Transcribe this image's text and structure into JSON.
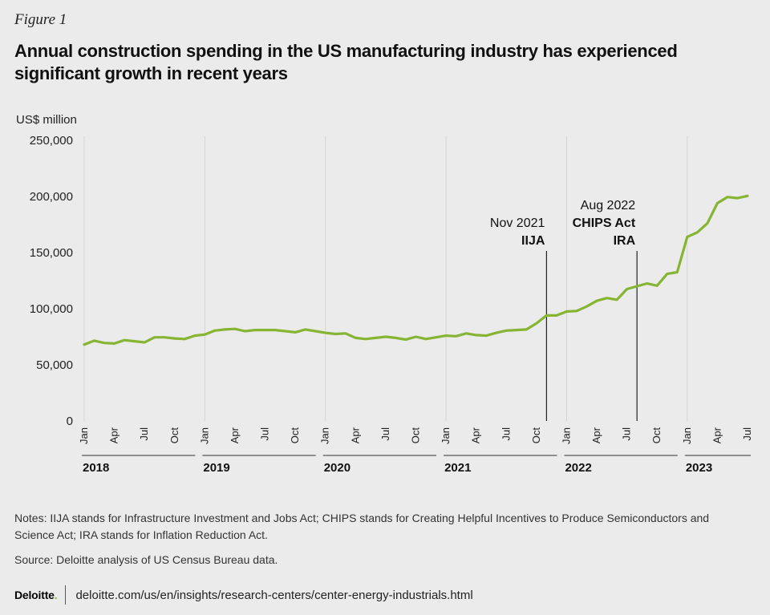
{
  "figure_label": "Figure 1",
  "title": "Annual construction spending in the US manufacturing industry has experienced significant growth in recent years",
  "notes": "Notes: IIJA stands for Infrastructure Investment and Jobs Act; CHIPS stands for Creating Helpful Incentives to Produce Semiconductors and Science Act; IRA stands for Inflation Reduction Act.",
  "source": "Source: Deloitte analysis of US Census Bureau data.",
  "footer": {
    "brand": "Deloitte",
    "brand_dot": ".",
    "url": "deloitte.com/us/en/insights/research-centers/center-energy-industrials.html"
  },
  "colors": {
    "line": "#86b534",
    "background": "#ebebeb",
    "gridline": "#d4d4d4",
    "text": "#1a1a1a"
  },
  "chart_data": {
    "type": "line",
    "ylabel": "US$ million",
    "ylim": [
      0,
      250000
    ],
    "yticks": [
      0,
      50000,
      100000,
      150000,
      200000,
      250000
    ],
    "ytick_labels": [
      "0",
      "50,000",
      "100,000",
      "150,000",
      "200,000",
      "250,000"
    ],
    "month_tick_labels": [
      "Jan",
      "Apr",
      "Jul",
      "Oct"
    ],
    "years": [
      "2018",
      "2019",
      "2020",
      "2021",
      "2022",
      "2023"
    ],
    "x_start": "2018-01",
    "x_end": "2023-07",
    "grid": "vertical lines at each January",
    "series": [
      {
        "dates": [
          "2018-01",
          "2018-02",
          "2018-03",
          "2018-04",
          "2018-05",
          "2018-06",
          "2018-07",
          "2018-08",
          "2018-09",
          "2018-10",
          "2018-11",
          "2018-12",
          "2019-01",
          "2019-02",
          "2019-03",
          "2019-04",
          "2019-05",
          "2019-06",
          "2019-07",
          "2019-08",
          "2019-09",
          "2019-10",
          "2019-11",
          "2019-12",
          "2020-01",
          "2020-02",
          "2020-03",
          "2020-04",
          "2020-05",
          "2020-06",
          "2020-07",
          "2020-08",
          "2020-09",
          "2020-10",
          "2020-11",
          "2020-12",
          "2021-01",
          "2021-02",
          "2021-03",
          "2021-04",
          "2021-05",
          "2021-06",
          "2021-07",
          "2021-08",
          "2021-09",
          "2021-10",
          "2021-11",
          "2021-12",
          "2022-01",
          "2022-02",
          "2022-03",
          "2022-04",
          "2022-05",
          "2022-06",
          "2022-07",
          "2022-08",
          "2022-09",
          "2022-10",
          "2022-11",
          "2022-12",
          "2023-01",
          "2023-02",
          "2023-03",
          "2023-04",
          "2023-05",
          "2023-06",
          "2023-07"
        ],
        "values": [
          68000,
          71500,
          69500,
          69000,
          72000,
          71000,
          70000,
          74500,
          74500,
          73500,
          73000,
          76000,
          77000,
          80500,
          81500,
          82000,
          80000,
          81000,
          81000,
          81000,
          80000,
          79000,
          81500,
          80000,
          78500,
          77500,
          78000,
          74000,
          73000,
          74000,
          75000,
          74000,
          72500,
          75000,
          73000,
          74500,
          76000,
          75500,
          78000,
          76500,
          76000,
          78500,
          80500,
          81000,
          81500,
          87000,
          94000,
          94000,
          97500,
          98000,
          102000,
          107000,
          109500,
          108000,
          117500,
          120000,
          122500,
          120500,
          131000,
          132500,
          164000,
          168000,
          176000,
          194000,
          199500,
          198500,
          200500
        ]
      }
    ],
    "annotations": [
      {
        "date": "2021-11",
        "top_value": 150000,
        "line1": "Nov 2021",
        "line2": "IIJA"
      },
      {
        "date": "2022-08",
        "top_value": 150000,
        "line1": "Aug 2022",
        "line2": "CHIPS Act",
        "line3": "IRA"
      }
    ]
  }
}
